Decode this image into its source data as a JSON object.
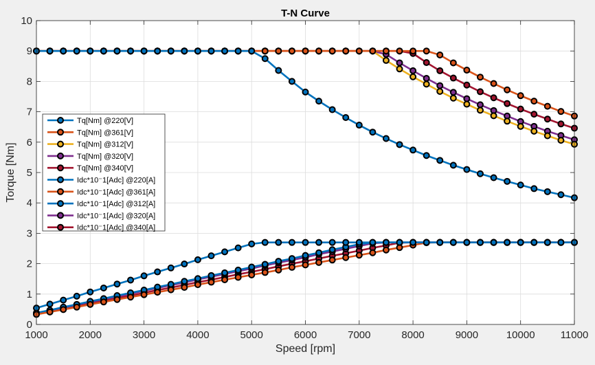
{
  "chart_data": {
    "type": "line",
    "title": "T-N Curve",
    "xlabel": "Speed [rpm]",
    "ylabel": "Torque [Nm]",
    "xlim": [
      1000,
      11000
    ],
    "ylim": [
      0,
      10
    ],
    "xticks": [
      1000,
      2000,
      3000,
      4000,
      5000,
      6000,
      7000,
      8000,
      9000,
      10000,
      11000
    ],
    "yticks": [
      0,
      1,
      2,
      3,
      4,
      5,
      6,
      7,
      8,
      9,
      10
    ],
    "grid": true,
    "legend_position": "left",
    "x": [
      1000,
      1250,
      1500,
      1750,
      2000,
      2250,
      2500,
      2750,
      3000,
      3250,
      3500,
      3750,
      4000,
      4250,
      4500,
      4750,
      5000,
      5250,
      5500,
      5750,
      6000,
      6250,
      6500,
      6750,
      7000,
      7250,
      7500,
      7750,
      8000,
      8250,
      8500,
      8750,
      9000,
      9250,
      9500,
      9750,
      10000,
      10250,
      10500,
      10750,
      11000
    ],
    "series": [
      {
        "name": "Tq[Nm] @220[V]",
        "color": "#0072BD",
        "values": [
          9,
          9,
          9,
          9,
          9,
          9,
          9,
          9,
          9,
          9,
          9,
          9,
          9,
          9,
          9,
          9,
          9,
          8.75,
          8.36,
          8.0,
          7.65,
          7.35,
          7.07,
          6.81,
          6.56,
          6.33,
          6.12,
          5.92,
          5.74,
          5.56,
          5.4,
          5.24,
          5.1,
          4.96,
          4.83,
          4.71,
          4.59,
          4.47,
          4.37,
          4.27,
          4.17
        ]
      },
      {
        "name": "Tq[Nm] @361[V]",
        "color": "#D95319",
        "values": [
          9,
          9,
          9,
          9,
          9,
          9,
          9,
          9,
          9,
          9,
          9,
          9,
          9,
          9,
          9,
          9,
          9,
          9,
          9,
          9,
          9,
          9,
          9,
          9,
          9,
          9,
          9,
          9,
          9,
          9,
          8.87,
          8.61,
          8.37,
          8.14,
          7.93,
          7.72,
          7.53,
          7.35,
          7.18,
          7.01,
          6.86
        ]
      },
      {
        "name": "Tq[Nm] @312[V]",
        "color": "#EDB120",
        "values": [
          9,
          9,
          9,
          9,
          9,
          9,
          9,
          9,
          9,
          9,
          9,
          9,
          9,
          9,
          9,
          9,
          9,
          9,
          9,
          9,
          9,
          9,
          9,
          9,
          9,
          9,
          8.69,
          8.41,
          8.15,
          7.91,
          7.67,
          7.45,
          7.25,
          7.05,
          6.87,
          6.69,
          6.52,
          6.36,
          6.21,
          6.06,
          5.93
        ]
      },
      {
        "name": "Tq[Nm] @320[V]",
        "color": "#7E2F8E",
        "values": [
          9,
          9,
          9,
          9,
          9,
          9,
          9,
          9,
          9,
          9,
          9,
          9,
          9,
          9,
          9,
          9,
          9,
          9,
          9,
          9,
          9,
          9,
          9,
          9,
          9,
          9,
          8.89,
          8.61,
          8.35,
          8.1,
          7.86,
          7.64,
          7.43,
          7.23,
          7.04,
          6.86,
          6.68,
          6.52,
          6.36,
          6.22,
          6.08
        ]
      },
      {
        "name": "Tq[Nm] @340[V]",
        "color": "#A2142F",
        "values": [
          9,
          9,
          9,
          9,
          9,
          9,
          9,
          9,
          9,
          9,
          9,
          9,
          9,
          9,
          9,
          9,
          9,
          9,
          9,
          9,
          9,
          9,
          9,
          9,
          9,
          9,
          9,
          9,
          8.92,
          8.62,
          8.35,
          8.11,
          7.88,
          7.66,
          7.46,
          7.27,
          7.09,
          6.92,
          6.76,
          6.6,
          6.46
        ]
      },
      {
        "name": "Idc*10⁻1[Adc]  @220[A]",
        "color": "#0072BD",
        "values": [
          0.54,
          0.67,
          0.8,
          0.93,
          1.07,
          1.2,
          1.33,
          1.46,
          1.6,
          1.73,
          1.86,
          1.99,
          2.13,
          2.26,
          2.39,
          2.52,
          2.65,
          2.7,
          2.7,
          2.7,
          2.7,
          2.7,
          2.7,
          2.7,
          2.7,
          2.7,
          2.7,
          2.7,
          2.7,
          2.7,
          2.7,
          2.7,
          2.7,
          2.7,
          2.7,
          2.7,
          2.7,
          2.7,
          2.7,
          2.7,
          2.7
        ]
      },
      {
        "name": "Idc*10⁻1[Adc]  @361[A]",
        "color": "#D95319",
        "values": [
          0.33,
          0.41,
          0.49,
          0.57,
          0.66,
          0.74,
          0.82,
          0.9,
          0.98,
          1.06,
          1.14,
          1.22,
          1.31,
          1.39,
          1.47,
          1.55,
          1.63,
          1.71,
          1.79,
          1.88,
          1.96,
          2.04,
          2.12,
          2.2,
          2.28,
          2.36,
          2.45,
          2.53,
          2.61,
          2.69,
          2.7,
          2.7,
          2.7,
          2.7,
          2.7,
          2.7,
          2.7,
          2.7,
          2.7,
          2.7,
          2.7
        ]
      },
      {
        "name": "Idc*10⁻1[Adc]  @312[A]",
        "color": "#0072BD",
        "values": [
          0.38,
          0.47,
          0.57,
          0.66,
          0.76,
          0.85,
          0.95,
          1.04,
          1.13,
          1.23,
          1.32,
          1.42,
          1.51,
          1.61,
          1.7,
          1.79,
          1.89,
          1.98,
          2.08,
          2.17,
          2.27,
          2.36,
          2.46,
          2.55,
          2.64,
          2.7,
          2.7,
          2.7,
          2.7,
          2.7,
          2.7,
          2.7,
          2.7,
          2.7,
          2.7,
          2.7,
          2.7,
          2.7,
          2.7,
          2.7,
          2.7
        ]
      },
      {
        "name": "Idc*10⁻1[Adc]  @320[A]",
        "color": "#7E2F8E",
        "values": [
          0.37,
          0.46,
          0.55,
          0.65,
          0.74,
          0.83,
          0.92,
          1.01,
          1.11,
          1.2,
          1.29,
          1.38,
          1.48,
          1.57,
          1.66,
          1.75,
          1.84,
          1.94,
          2.03,
          2.12,
          2.21,
          2.31,
          2.4,
          2.49,
          2.58,
          2.67,
          2.7,
          2.7,
          2.7,
          2.7,
          2.7,
          2.7,
          2.7,
          2.7,
          2.7,
          2.7,
          2.7,
          2.7,
          2.7,
          2.7,
          2.7
        ]
      },
      {
        "name": "Idc*10⁻1[Adc]  @340[A]",
        "color": "#A2142F",
        "values": [
          0.35,
          0.43,
          0.52,
          0.61,
          0.69,
          0.78,
          0.87,
          0.95,
          1.04,
          1.13,
          1.21,
          1.3,
          1.39,
          1.47,
          1.56,
          1.65,
          1.73,
          1.82,
          1.91,
          2.0,
          2.08,
          2.17,
          2.26,
          2.34,
          2.43,
          2.52,
          2.6,
          2.69,
          2.7,
          2.7,
          2.7,
          2.7,
          2.7,
          2.7,
          2.7,
          2.7,
          2.7,
          2.7,
          2.7,
          2.7,
          2.7
        ]
      }
    ]
  }
}
